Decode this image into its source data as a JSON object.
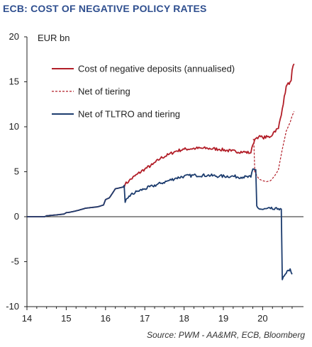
{
  "chart_data": {
    "type": "line",
    "title": "ECB: COST OF NEGATIVE POLICY RATES",
    "unit_label": "EUR bn",
    "source": "Source: PWM - AA&MR, ECB, Bloomberg",
    "xlim": [
      14,
      20.9
    ],
    "ylim": [
      -10,
      20
    ],
    "x_ticks": [
      14,
      15,
      16,
      17,
      18,
      19,
      20
    ],
    "y_ticks": [
      -10,
      -5,
      0,
      5,
      10,
      15,
      20
    ],
    "y_tick_labels": [
      "-10",
      "-5",
      "0",
      "5",
      "10",
      "15",
      "20"
    ],
    "grid": false,
    "legend_position": "top-center",
    "series": [
      {
        "name": "Cost of negative deposits (annualised)",
        "color": "#b21e28",
        "style": "solid",
        "x": [
          14.0,
          14.45,
          14.5,
          14.75,
          14.95,
          15.0,
          15.1,
          15.3,
          15.5,
          15.8,
          15.95,
          16.0,
          16.1,
          16.25,
          16.45,
          16.5,
          16.6,
          16.8,
          17.0,
          17.2,
          17.4,
          17.6,
          17.8,
          18.0,
          18.3,
          18.6,
          18.9,
          19.2,
          19.5,
          19.7,
          19.75,
          19.8,
          19.85,
          19.9,
          20.0,
          20.2,
          20.3,
          20.4,
          20.5,
          20.6,
          20.7,
          20.75,
          20.8
        ],
        "y": [
          0.0,
          0.0,
          0.1,
          0.2,
          0.3,
          0.45,
          0.5,
          0.7,
          0.95,
          1.1,
          1.3,
          1.9,
          2.1,
          3.1,
          3.3,
          3.6,
          4.0,
          4.7,
          5.3,
          5.8,
          6.5,
          6.9,
          7.3,
          7.5,
          7.6,
          7.6,
          7.5,
          7.3,
          7.2,
          7.1,
          8.0,
          8.6,
          8.8,
          8.9,
          8.8,
          8.9,
          9.5,
          9.8,
          12.0,
          14.5,
          15.0,
          16.3,
          17.0
        ]
      },
      {
        "name": "Net of tiering",
        "color": "#b21e28",
        "style": "dashed",
        "x": [
          19.75,
          19.8,
          19.9,
          20.0,
          20.1,
          20.2,
          20.3,
          20.4,
          20.5,
          20.6,
          20.7,
          20.75,
          20.8
        ],
        "y": [
          8.6,
          5.0,
          4.2,
          4.0,
          3.9,
          4.0,
          4.5,
          5.2,
          7.5,
          9.5,
          10.5,
          11.2,
          11.7
        ]
      },
      {
        "name": "Net of TLTRO and tiering",
        "color": "#1c3c6e",
        "style": "solid",
        "x": [
          14.0,
          14.45,
          14.5,
          14.75,
          14.95,
          15.0,
          15.1,
          15.3,
          15.5,
          15.8,
          15.95,
          16.0,
          16.1,
          16.25,
          16.45,
          16.5,
          16.6,
          16.8,
          17.0,
          17.2,
          17.4,
          17.6,
          17.8,
          18.0,
          18.3,
          18.6,
          18.9,
          19.2,
          19.5,
          19.7,
          19.75,
          19.8,
          19.85,
          19.9,
          20.0,
          20.2,
          20.3,
          20.4,
          20.45,
          20.5,
          20.6,
          20.7,
          20.75
        ],
        "y": [
          0.0,
          0.0,
          0.1,
          0.2,
          0.3,
          0.45,
          0.5,
          0.7,
          0.95,
          1.1,
          1.3,
          1.9,
          2.1,
          3.1,
          3.3,
          1.6,
          2.3,
          2.8,
          3.1,
          3.4,
          3.7,
          4.0,
          4.3,
          4.5,
          4.6,
          4.6,
          4.5,
          4.5,
          4.4,
          4.4,
          5.3,
          5.2,
          1.2,
          0.9,
          0.8,
          0.9,
          0.8,
          0.9,
          0.9,
          -7.0,
          -6.3,
          -5.8,
          -6.4
        ]
      }
    ]
  }
}
